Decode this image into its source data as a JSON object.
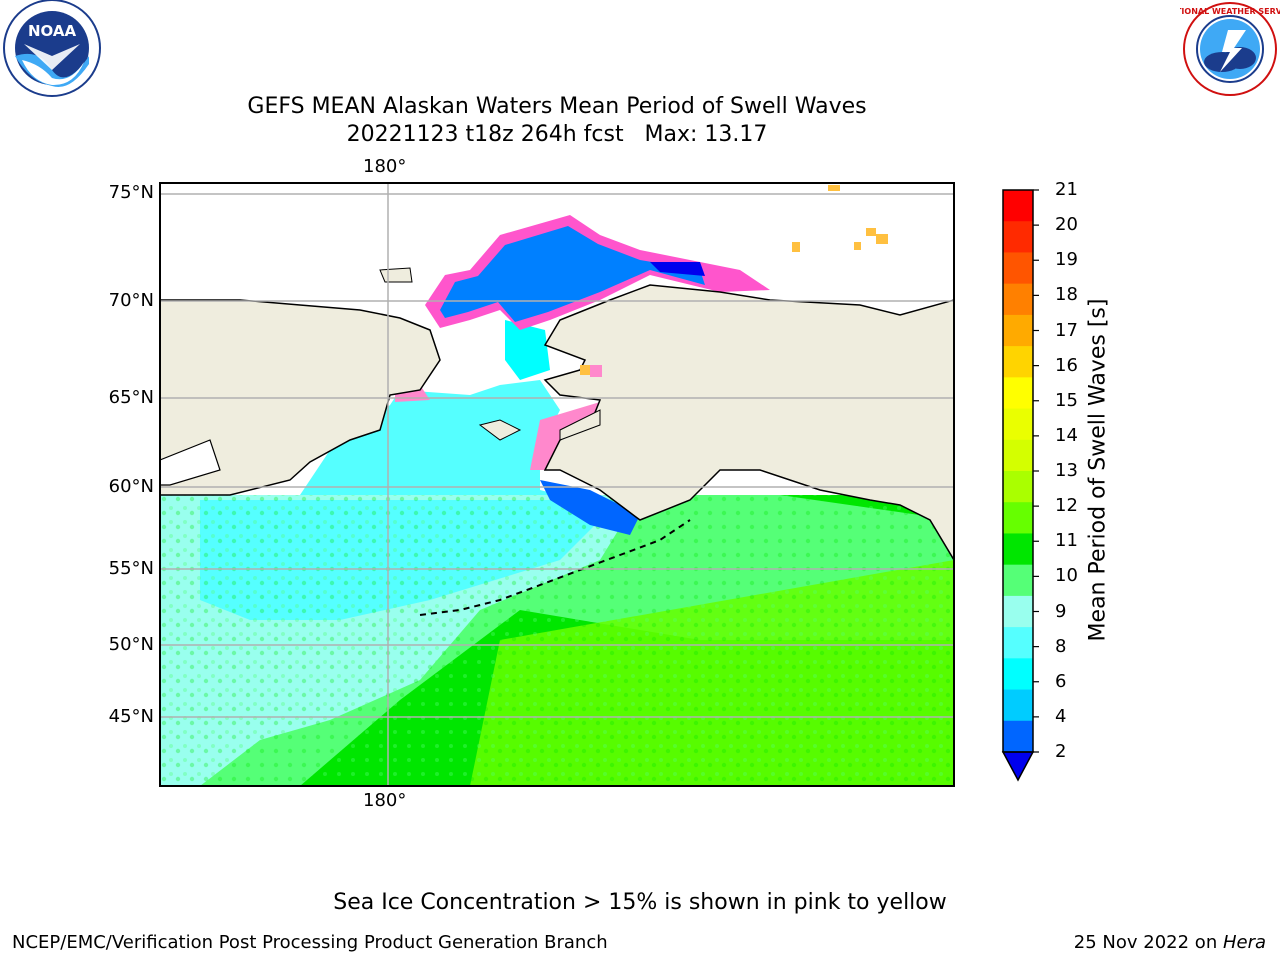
{
  "title": {
    "line1": "GEFS MEAN Alaskan Waters Mean Period of Swell Waves",
    "line2": "20221123 t18z 264h fcst   Max: 13.17"
  },
  "logos": {
    "noaa_text": "NOAA",
    "noaa_ring": "NATIONAL OCEANIC AND ATMOSPHERIC ADMINISTRATION",
    "noaa_ring_bottom": "U.S. DEPARTMENT OF COMMERCE",
    "nws_ring": "NATIONAL WEATHER SERVICE"
  },
  "map": {
    "lon_label_top": "180°",
    "lon_label_bottom": "180°",
    "lat_labels": [
      "75°N",
      "70°N",
      "65°N",
      "60°N",
      "55°N",
      "50°N",
      "45°N"
    ],
    "land_color": "#efedde",
    "ice_colors": [
      "#ff55cc",
      "#ff88cc",
      "#ffc040"
    ]
  },
  "colorbar": {
    "label": "Mean Period of Swell Waves [s]",
    "ticks": [
      "21",
      "20",
      "19",
      "18",
      "17",
      "16",
      "15",
      "14",
      "13",
      "12",
      "11",
      "10",
      "9",
      "8",
      "6",
      "4",
      "2"
    ],
    "colors": [
      "#ff0000",
      "#ff2a00",
      "#ff5500",
      "#ff8000",
      "#ffaa00",
      "#ffd400",
      "#ffff00",
      "#eaff00",
      "#d4ff00",
      "#aaff00",
      "#66ff00",
      "#00e600",
      "#55ff77",
      "#99ffee",
      "#55ffff",
      "#00ffff",
      "#00ccff",
      "#0066ff"
    ],
    "extend_color": "#0000ee"
  },
  "notes": {
    "ice": "Sea Ice Concentration > 15% is shown in pink to yellow",
    "credit": "NCEP/EMC/Verification Post Processing Product Generation Branch",
    "date": "25 Nov 2022 on ",
    "machine": "Hera"
  }
}
